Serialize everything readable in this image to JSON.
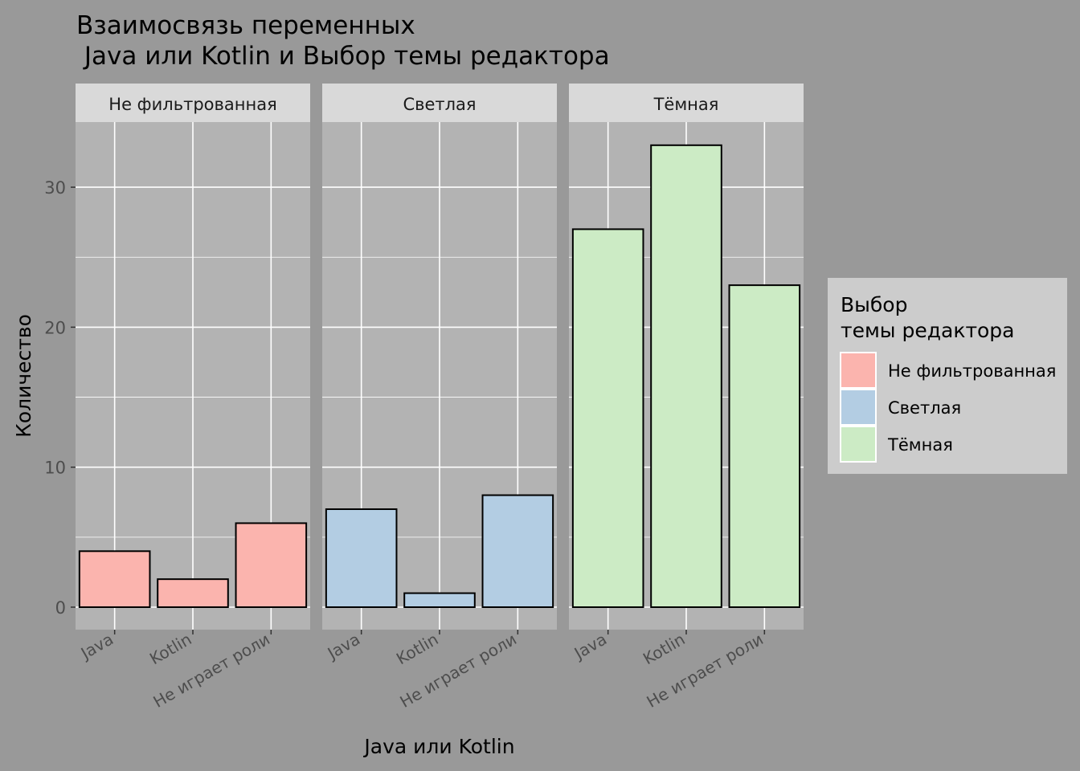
{
  "chart_data": {
    "type": "bar",
    "title_lines": [
      "Взаимосвязь переменных",
      " Java или Kotlin и Выбор темы редактора"
    ],
    "xlabel": "Java или Kotlin",
    "ylabel": "Количество",
    "ylim": [
      -1.6,
      35
    ],
    "yticks": [
      0,
      10,
      20,
      30
    ],
    "categories": [
      "Java",
      "Kotlin",
      "Не играет роли"
    ],
    "facets": [
      {
        "label": "Не фильтрованная",
        "fill": "#FBB4AE",
        "values": [
          4,
          2,
          6
        ]
      },
      {
        "label": "Светлая",
        "fill": "#B3CDE3",
        "values": [
          7,
          1,
          8
        ]
      },
      {
        "label": "Тёмная",
        "fill": "#CCEBC5",
        "values": [
          27,
          33,
          23
        ]
      }
    ],
    "legend": {
      "title_lines": [
        "Выбор",
        "темы редактора"
      ],
      "placement": "right",
      "items": [
        {
          "label": "Не фильтрованная",
          "fill": "#FBB4AE"
        },
        {
          "label": "Светлая",
          "fill": "#B3CDE3"
        },
        {
          "label": "Тёмная",
          "fill": "#CCEBC5"
        }
      ]
    },
    "grid": true
  }
}
